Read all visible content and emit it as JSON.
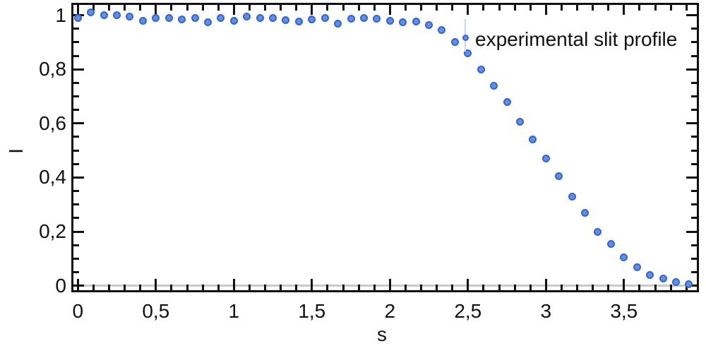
{
  "chart_data": {
    "type": "scatter",
    "title": "",
    "xlabel": "s",
    "ylabel": "I",
    "xlim": [
      -0.03,
      3.97
    ],
    "ylim": [
      -0.02,
      1.04
    ],
    "grid": false,
    "zero_reference_line_y": 0,
    "decimal_separator": ",",
    "x_ticks": [
      {
        "v": 0.0,
        "label": "0"
      },
      {
        "v": 0.5,
        "label": "0,5"
      },
      {
        "v": 1.0,
        "label": "1"
      },
      {
        "v": 1.5,
        "label": "1,5"
      },
      {
        "v": 2.0,
        "label": "2"
      },
      {
        "v": 2.5,
        "label": "2,5"
      },
      {
        "v": 3.0,
        "label": "3"
      },
      {
        "v": 3.5,
        "label": "3,5"
      }
    ],
    "y_ticks": [
      {
        "v": 0.0,
        "label": "0"
      },
      {
        "v": 0.2,
        "label": "0,2"
      },
      {
        "v": 0.4,
        "label": "0,4"
      },
      {
        "v": 0.6,
        "label": "0,6"
      },
      {
        "v": 0.8,
        "label": "0,8"
      },
      {
        "v": 1.0,
        "label": "1"
      }
    ],
    "x_minor_step": 0.1,
    "y_minor_step": 0.05,
    "legend": {
      "label": "experimental slit profile",
      "position": "top-right",
      "marker": "dot-with-errorbar"
    },
    "series": [
      {
        "name": "experimental slit profile",
        "points": [
          [
            0.0,
            0.99
          ],
          [
            0.083,
            1.01
          ],
          [
            0.167,
            1.0
          ],
          [
            0.25,
            1.0
          ],
          [
            0.333,
            0.995
          ],
          [
            0.417,
            0.98
          ],
          [
            0.5,
            0.99
          ],
          [
            0.583,
            0.99
          ],
          [
            0.667,
            0.985
          ],
          [
            0.75,
            0.99
          ],
          [
            0.833,
            0.975
          ],
          [
            0.917,
            0.99
          ],
          [
            1.0,
            0.98
          ],
          [
            1.083,
            0.995
          ],
          [
            1.167,
            0.99
          ],
          [
            1.25,
            0.99
          ],
          [
            1.333,
            0.981
          ],
          [
            1.417,
            0.978
          ],
          [
            1.5,
            0.985
          ],
          [
            1.583,
            0.99
          ],
          [
            1.667,
            0.968
          ],
          [
            1.75,
            0.986
          ],
          [
            1.833,
            0.99
          ],
          [
            1.917,
            0.986
          ],
          [
            2.0,
            0.98
          ],
          [
            2.083,
            0.973
          ],
          [
            2.167,
            0.977
          ],
          [
            2.25,
            0.965
          ],
          [
            2.333,
            0.945
          ],
          [
            2.417,
            0.9
          ],
          [
            2.5,
            0.858
          ],
          [
            2.583,
            0.8
          ],
          [
            2.667,
            0.74
          ],
          [
            2.75,
            0.68
          ],
          [
            2.833,
            0.605
          ],
          [
            2.917,
            0.54
          ],
          [
            3.0,
            0.47
          ],
          [
            3.083,
            0.405
          ],
          [
            3.167,
            0.33
          ],
          [
            3.25,
            0.27
          ],
          [
            3.333,
            0.2
          ],
          [
            3.417,
            0.155
          ],
          [
            3.5,
            0.105
          ],
          [
            3.583,
            0.067
          ],
          [
            3.667,
            0.04
          ],
          [
            3.75,
            0.026
          ],
          [
            3.833,
            0.013
          ],
          [
            3.917,
            0.006
          ]
        ]
      }
    ]
  },
  "colors": {
    "background": "#ffffff",
    "axis": "#111111",
    "text": "#111111",
    "dot_fill": "#5f8fe8",
    "dot_stroke": "#3565cc",
    "zero_line": "#c9c9c9",
    "legend_errorbar": "#c7d7f3"
  }
}
